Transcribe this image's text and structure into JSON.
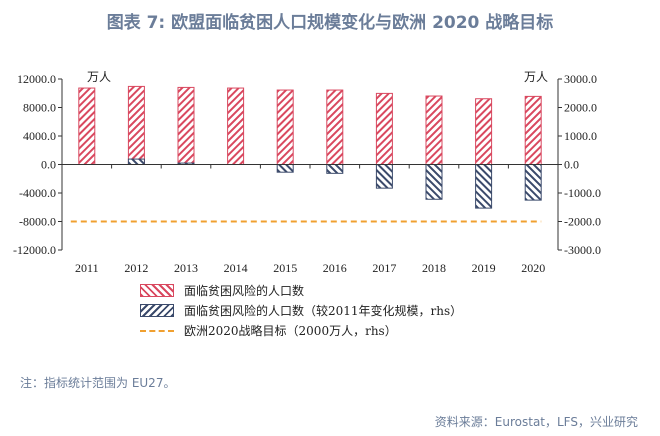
{
  "title": "图表 7: 欧盟面临贫困人口规模变化与欧洲 2020 战略目标",
  "chart_data": {
    "type": "bar",
    "categories": [
      "2011",
      "2012",
      "2013",
      "2014",
      "2015",
      "2016",
      "2017",
      "2018",
      "2019",
      "2020"
    ],
    "series": [
      {
        "name": "面临贫困风险的人口数",
        "axis": "left",
        "values": [
          10730,
          10960,
          10820,
          10730,
          10450,
          10450,
          9980,
          9610,
          9230,
          9560
        ],
        "color": "#d9485f",
        "pattern": "hatch-down"
      },
      {
        "name": "面临贫困风险的人口数（较2011年变化规模，rhs）",
        "axis": "right",
        "values": [
          0,
          190,
          50,
          0,
          -270,
          -310,
          -830,
          -1220,
          -1530,
          -1250
        ],
        "color": "#3b4a6b",
        "pattern": "hatch-up"
      },
      {
        "name": "欧洲2020战略目标（2000万人，rhs）",
        "axis": "right",
        "type": "line",
        "style": "dashed",
        "values": [
          -2000,
          -2000,
          -2000,
          -2000,
          -2000,
          -2000,
          -2000,
          -2000,
          -2000,
          -2000
        ],
        "color": "#f0a030"
      }
    ],
    "left_axis": {
      "unit": "万人",
      "ylim": [
        -12000,
        12000
      ],
      "ticks": [
        "12000.0",
        "8000.0",
        "4000.0",
        "0.0",
        "-4000.0",
        "-8000.0",
        "-12000.0"
      ]
    },
    "right_axis": {
      "unit": "万人",
      "ylim": [
        -3000,
        3000
      ],
      "ticks": [
        "3000.0",
        "2000.0",
        "1000.0",
        "0.0",
        "-1000.0",
        "-2000.0",
        "-3000.0"
      ]
    },
    "legend_position": "bottom"
  },
  "note": "注：指标统计范围为 EU27。",
  "source": "资料来源：Eurostat，LFS，兴业研究"
}
